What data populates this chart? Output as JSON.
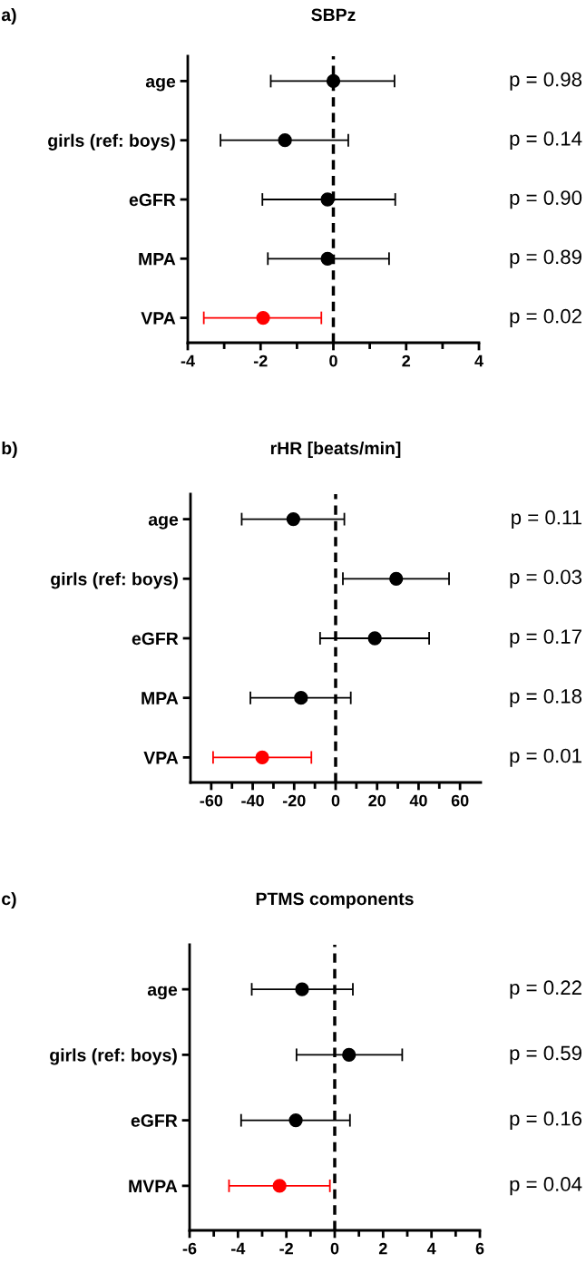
{
  "chart_data": [
    {
      "type": "scatter",
      "orientation": "horizontal",
      "title": "SBPz",
      "categories": [
        "age",
        "girls (ref: boys)",
        "eGFR",
        "MPA",
        "VPA"
      ],
      "series": [
        {
          "values": [
            0.0,
            -1.33,
            -0.16,
            -0.16,
            -1.93
          ],
          "errors": [
            [
              -1.72,
              1.68
            ],
            [
              -3.1,
              0.41
            ],
            [
              -1.95,
              1.7
            ],
            [
              -1.8,
              1.53
            ],
            [
              -3.56,
              -0.33
            ]
          ],
          "colors": [
            "#000000",
            "#000000",
            "#000000",
            "#000000",
            "#ff0000"
          ]
        }
      ],
      "xlim": [
        -4,
        4
      ],
      "xticks": [
        -4,
        -2,
        0,
        2,
        4
      ],
      "marker": "circle",
      "grid": false,
      "legend": false,
      "ref_lines": [
        {
          "axis": "x",
          "value": 0,
          "color": "#000000",
          "line_style": "dashed"
        }
      ],
      "annotations": [
        "a)",
        "p = 0.98",
        "p = 0.14",
        "p = 0.90",
        "p = 0.89",
        "p = 0.02"
      ]
    },
    {
      "type": "scatter",
      "orientation": "horizontal",
      "title": "rHR [beats/min]",
      "categories": [
        "age",
        "girls (ref: boys)",
        "eGFR",
        "MPA",
        "VPA"
      ],
      "series": [
        {
          "values": [
            -20.4,
            29.2,
            18.9,
            -16.7,
            -35.4
          ],
          "errors": [
            [
              -45.3,
              4.2
            ],
            [
              3.5,
              54.7
            ],
            [
              -7.5,
              45.1
            ],
            [
              -41.1,
              7.3
            ],
            [
              -59.1,
              -11.7
            ]
          ],
          "colors": [
            "#000000",
            "#000000",
            "#000000",
            "#000000",
            "#ff0000"
          ]
        }
      ],
      "xlim": [
        -70,
        70
      ],
      "xticks": [
        -60,
        -40,
        -20,
        0,
        20,
        40,
        60
      ],
      "marker": "circle",
      "grid": false,
      "legend": false,
      "ref_lines": [
        {
          "axis": "x",
          "value": 0,
          "color": "#000000",
          "line_style": "dashed"
        }
      ],
      "annotations": [
        "b)",
        "p = 0.11",
        "p = 0.03",
        "p = 0.17",
        "p = 0.18",
        "p = 0.01"
      ]
    },
    {
      "type": "scatter",
      "orientation": "horizontal",
      "title": "PTMS components",
      "categories": [
        "age",
        "girls (ref: boys)",
        "eGFR",
        "MVPA"
      ],
      "series": [
        {
          "values": [
            -1.35,
            0.59,
            -1.61,
            -2.28
          ],
          "errors": [
            [
              -3.43,
              0.75
            ],
            [
              -1.58,
              2.79
            ],
            [
              -3.87,
              0.63
            ],
            [
              -4.37,
              -0.2
            ]
          ],
          "colors": [
            "#000000",
            "#000000",
            "#000000",
            "#ff0000"
          ]
        }
      ],
      "xlim": [
        -6,
        6
      ],
      "xticks": [
        -6,
        -4,
        -2,
        0,
        2,
        4,
        6
      ],
      "marker": "circle",
      "grid": false,
      "legend": false,
      "ref_lines": [
        {
          "axis": "x",
          "value": 0,
          "color": "#000000",
          "line_style": "dashed"
        }
      ],
      "annotations": [
        "c)",
        "p = 0.22",
        "p = 0.59",
        "p = 0.16",
        "p = 0.04"
      ]
    }
  ]
}
